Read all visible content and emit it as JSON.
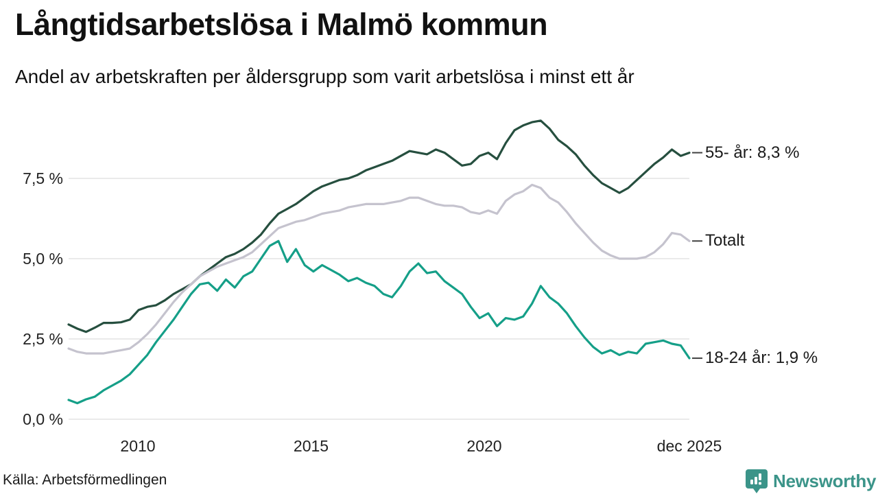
{
  "chart_data": {
    "type": "line",
    "title": "Långtidsarbetslösa i Malmö kommun",
    "subtitle": "Andel av arbetskraften per åldersgrupp som varit arbetslösa i minst ett år",
    "x_min": 2008.0,
    "x_max": 2025.92,
    "ylim": [
      0,
      9.75
    ],
    "grid": "horizontal",
    "legend_position": "right-end-labels",
    "colors": {
      "grid": "#e3e3e3",
      "connector": "#3f3f3f",
      "axis_text": "#222222"
    },
    "y_ticks": [
      {
        "v": 0.0,
        "label": "0,0 %"
      },
      {
        "v": 2.5,
        "label": "2,5 %"
      },
      {
        "v": 5.0,
        "label": "5,0 %"
      },
      {
        "v": 7.5,
        "label": "7,5 %"
      }
    ],
    "x_ticks": [
      {
        "t": 2010,
        "label": "2010"
      },
      {
        "t": 2015,
        "label": "2015"
      },
      {
        "t": 2020,
        "label": "2020"
      },
      {
        "t": 2025.92,
        "label": "dec 2025"
      }
    ],
    "x_unit": "year (monthly series, Jan 2008 – Dec 2025, sampled quarterly)",
    "y_unit": "percent of labour force",
    "series": [
      {
        "id": "55-ar",
        "name": "55- år",
        "end_label": "55- år: 8,3 %",
        "end_value": 8.3,
        "color": "#264f3f",
        "values": [
          2.95,
          2.82,
          2.72,
          2.85,
          3.0,
          3.0,
          3.02,
          3.1,
          3.4,
          3.5,
          3.55,
          3.7,
          3.9,
          4.05,
          4.2,
          4.45,
          4.65,
          4.85,
          5.05,
          5.15,
          5.3,
          5.5,
          5.75,
          6.1,
          6.4,
          6.55,
          6.7,
          6.9,
          7.1,
          7.25,
          7.35,
          7.45,
          7.5,
          7.6,
          7.75,
          7.85,
          7.95,
          8.05,
          8.2,
          8.35,
          8.3,
          8.25,
          8.4,
          8.3,
          8.1,
          7.9,
          7.95,
          8.2,
          8.3,
          8.1,
          8.6,
          9.0,
          9.15,
          9.25,
          9.3,
          9.05,
          8.7,
          8.5,
          8.25,
          7.9,
          7.6,
          7.35,
          7.2,
          7.05,
          7.2,
          7.45,
          7.7,
          7.95,
          8.15,
          8.4,
          8.2,
          8.3
        ]
      },
      {
        "id": "totalt",
        "name": "Totalt",
        "end_label": "Totalt",
        "end_value": 5.55,
        "color": "#c5c3ce",
        "values": [
          2.2,
          2.1,
          2.05,
          2.05,
          2.05,
          2.1,
          2.15,
          2.2,
          2.4,
          2.65,
          2.95,
          3.3,
          3.65,
          3.95,
          4.2,
          4.45,
          4.6,
          4.75,
          4.85,
          4.95,
          5.05,
          5.2,
          5.45,
          5.7,
          5.95,
          6.05,
          6.15,
          6.2,
          6.3,
          6.4,
          6.45,
          6.5,
          6.6,
          6.65,
          6.7,
          6.7,
          6.7,
          6.75,
          6.8,
          6.9,
          6.9,
          6.8,
          6.7,
          6.65,
          6.65,
          6.6,
          6.45,
          6.4,
          6.5,
          6.4,
          6.8,
          7.0,
          7.1,
          7.3,
          7.2,
          6.9,
          6.75,
          6.45,
          6.1,
          5.8,
          5.5,
          5.25,
          5.1,
          5.0,
          5.0,
          5.0,
          5.05,
          5.2,
          5.45,
          5.8,
          5.75,
          5.55
        ]
      },
      {
        "id": "18-24-ar",
        "name": "18-24 år",
        "end_label": "18-24 år: 1,9 %",
        "end_value": 1.9,
        "color": "#159f88",
        "values": [
          0.6,
          0.5,
          0.62,
          0.7,
          0.9,
          1.05,
          1.2,
          1.4,
          1.7,
          2.0,
          2.4,
          2.75,
          3.1,
          3.5,
          3.9,
          4.2,
          4.25,
          4.0,
          4.35,
          4.1,
          4.45,
          4.6,
          5.0,
          5.4,
          5.55,
          4.9,
          5.3,
          4.8,
          4.6,
          4.8,
          4.65,
          4.5,
          4.3,
          4.4,
          4.25,
          4.15,
          3.9,
          3.8,
          4.15,
          4.6,
          4.85,
          4.55,
          4.6,
          4.3,
          4.1,
          3.9,
          3.5,
          3.15,
          3.3,
          2.9,
          3.15,
          3.1,
          3.2,
          3.6,
          4.15,
          3.8,
          3.6,
          3.3,
          2.9,
          2.55,
          2.25,
          2.05,
          2.15,
          2.0,
          2.1,
          2.05,
          2.35,
          2.4,
          2.45,
          2.35,
          2.3,
          1.9
        ]
      }
    ]
  },
  "footer": {
    "source": "Källa: Arbetsförmedlingen",
    "brand": "Newsworthy",
    "brand_color": "#3b9489"
  }
}
